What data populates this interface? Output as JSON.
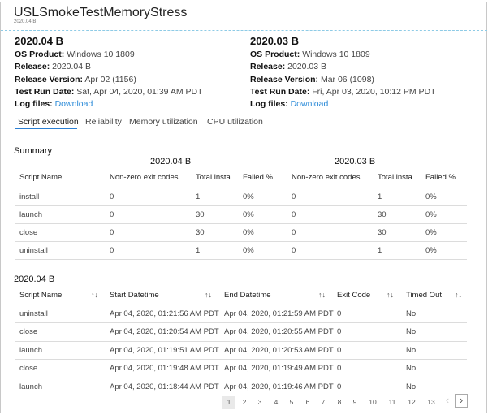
{
  "header": {
    "title": "USLSmokeTestMemoryStress",
    "subtitle": "2020.04 B"
  },
  "builds": [
    {
      "name": "2020.04 B",
      "os_label": "OS Product:",
      "os": "Windows 10 1809",
      "release_label": "Release:",
      "release": "2020.04 B",
      "version_label": "Release Version:",
      "version": "Apr 02 (1156)",
      "date_label": "Test Run Date:",
      "date": "Sat, Apr 04, 2020, 01:39 AM PDT",
      "log_label": "Log files:",
      "log_link": "Download"
    },
    {
      "name": "2020.03 B",
      "os_label": "OS Product:",
      "os": "Windows 10 1809",
      "release_label": "Release:",
      "release": "2020.03 B",
      "version_label": "Release Version:",
      "version": "Mar 06 (1098)",
      "date_label": "Test Run Date:",
      "date": "Fri, Apr 03, 2020, 10:12 PM PDT",
      "log_label": "Log files:",
      "log_link": "Download"
    }
  ],
  "tabs": [
    "Script execution",
    "Reliability",
    "Memory utilization",
    "CPU utilization"
  ],
  "summary": {
    "heading": "Summary",
    "group_a": "2020.04 B",
    "group_b": "2020.03 B",
    "columns": [
      "Script Name",
      "Non-zero exit codes",
      "Total insta...",
      "Failed %",
      "Non-zero exit codes",
      "Total insta...",
      "Failed %"
    ],
    "rows": [
      [
        "install",
        "0",
        "1",
        "0%",
        "0",
        "1",
        "0%"
      ],
      [
        "launch",
        "0",
        "30",
        "0%",
        "0",
        "30",
        "0%"
      ],
      [
        "close",
        "0",
        "30",
        "0%",
        "0",
        "30",
        "0%"
      ],
      [
        "uninstall",
        "0",
        "1",
        "0%",
        "0",
        "1",
        "0%"
      ]
    ]
  },
  "details": {
    "heading": "2020.04 B",
    "columns": [
      "Script Name",
      "Start Datetime",
      "End Datetime",
      "Exit Code",
      "Timed Out"
    ],
    "sort_icon": "↑↓",
    "rows": [
      [
        "uninstall",
        "Apr 04, 2020, 01:21:56 AM PDT",
        "Apr 04, 2020, 01:21:59 AM PDT",
        "0",
        "No"
      ],
      [
        "close",
        "Apr 04, 2020, 01:20:54 AM PDT",
        "Apr 04, 2020, 01:20:55 AM PDT",
        "0",
        "No"
      ],
      [
        "launch",
        "Apr 04, 2020, 01:19:51 AM PDT",
        "Apr 04, 2020, 01:20:53 AM PDT",
        "0",
        "No"
      ],
      [
        "close",
        "Apr 04, 2020, 01:19:48 AM PDT",
        "Apr 04, 2020, 01:19:49 AM PDT",
        "0",
        "No"
      ],
      [
        "launch",
        "Apr 04, 2020, 01:18:44 AM PDT",
        "Apr 04, 2020, 01:19:46 AM PDT",
        "0",
        "No"
      ]
    ]
  },
  "pagination": {
    "pages": [
      "1",
      "2",
      "3",
      "4",
      "5",
      "6",
      "7",
      "8",
      "9",
      "10",
      "11",
      "12",
      "13"
    ],
    "current": "1",
    "prev": "‹",
    "next": "›"
  }
}
